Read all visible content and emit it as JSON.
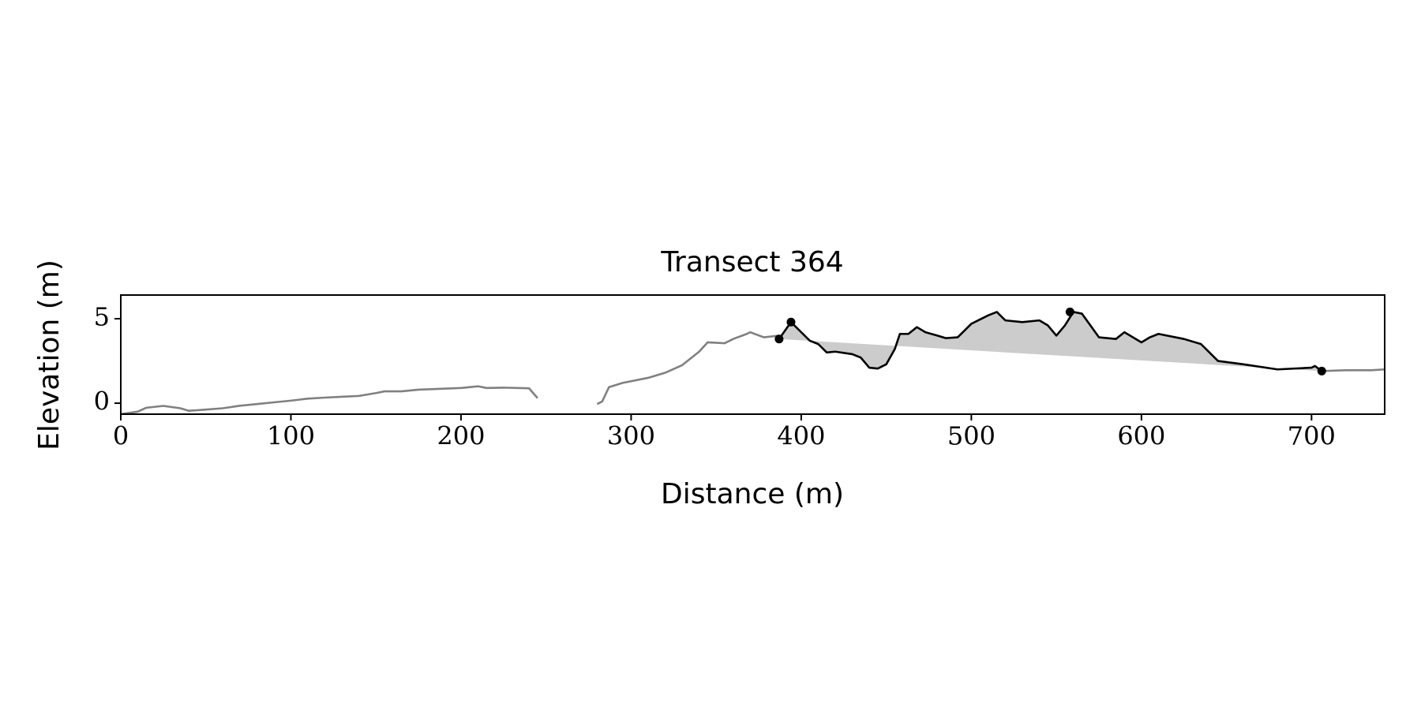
{
  "chart_data": {
    "type": "line",
    "title": "Transect 364",
    "xlabel": "Distance (m)",
    "ylabel": "Elevation (m)",
    "xlim": [
      0,
      743
    ],
    "ylim": [
      -0.65,
      6.4
    ],
    "xticks": [
      0,
      100,
      200,
      300,
      400,
      500,
      600,
      700
    ],
    "yticks": [
      0,
      5
    ],
    "grid": false,
    "series": [
      {
        "color": "#808080",
        "x": [
          0,
          10,
          15,
          25,
          35,
          40,
          50,
          60,
          70,
          80,
          90,
          100,
          110,
          120,
          130,
          140,
          150,
          155,
          165,
          175,
          190,
          200,
          210,
          215,
          225,
          240,
          245,
          262,
          280,
          283,
          287,
          295,
          310,
          320,
          330,
          340,
          345,
          355,
          360,
          368,
          370,
          378,
          387,
          550,
          706,
          720,
          735,
          743
        ],
        "values": [
          -0.65,
          -0.5,
          -0.27,
          -0.16,
          -0.3,
          -0.45,
          -0.38,
          -0.3,
          -0.15,
          -0.05,
          0.05,
          0.15,
          0.27,
          0.33,
          0.38,
          0.43,
          0.6,
          0.7,
          0.7,
          0.8,
          0.86,
          0.9,
          1.0,
          0.9,
          0.92,
          0.88,
          0.3,
          null,
          -0.05,
          0.1,
          0.95,
          1.2,
          1.5,
          1.8,
          2.25,
          3.05,
          3.6,
          3.55,
          3.8,
          4.1,
          4.2,
          3.9,
          4.0,
          null,
          1.9,
          1.95,
          1.95,
          2.0
        ]
      },
      {
        "color": "#000000",
        "x": [
          387,
          394,
          400,
          405,
          410,
          415,
          420,
          430,
          435,
          440,
          445,
          450,
          455,
          458,
          463,
          468,
          473,
          480,
          485,
          492,
          500,
          510,
          515,
          520,
          530,
          540,
          545,
          550,
          555,
          560,
          565,
          570,
          575,
          585,
          590,
          600,
          605,
          610,
          625,
          635,
          645,
          660,
          680,
          700,
          702,
          706
        ],
        "values": [
          3.8,
          4.8,
          4.2,
          3.7,
          3.5,
          3.0,
          3.05,
          2.9,
          2.7,
          2.1,
          2.05,
          2.3,
          3.2,
          4.1,
          4.1,
          4.5,
          4.2,
          4.0,
          3.85,
          3.9,
          4.7,
          5.2,
          5.4,
          4.9,
          4.8,
          4.9,
          4.6,
          4.0,
          4.6,
          5.4,
          5.3,
          4.6,
          3.9,
          3.8,
          4.2,
          3.6,
          3.9,
          4.1,
          3.8,
          3.5,
          2.5,
          2.3,
          2.0,
          2.1,
          2.2,
          1.9
        ]
      }
    ],
    "fill_color": "#cccccc",
    "points": {
      "color": "#000000",
      "x": [
        387,
        394,
        558,
        706
      ],
      "values": [
        3.8,
        4.8,
        5.4,
        1.9
      ]
    }
  }
}
